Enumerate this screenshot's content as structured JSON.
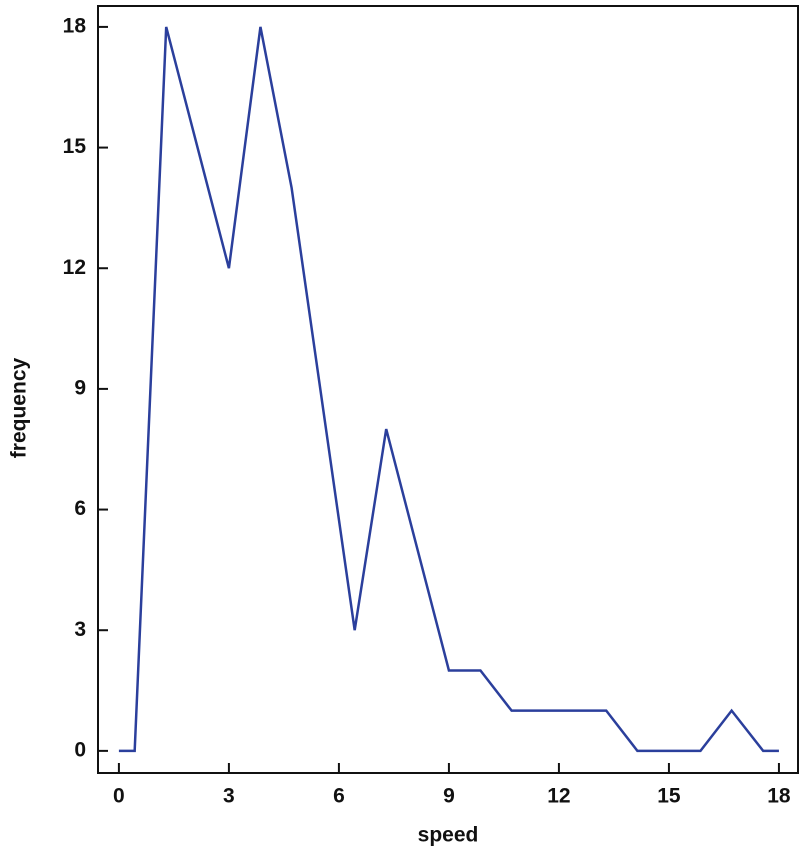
{
  "chart_data": {
    "type": "line",
    "x_label": "speed",
    "y_label": "frequency",
    "x": [
      0,
      0.43,
      1.29,
      3.0,
      3.86,
      4.71,
      6.43,
      7.29,
      9.0,
      9.86,
      10.71,
      13.29,
      14.14,
      15.86,
      16.71,
      17.57,
      18
    ],
    "series": [
      {
        "color": "#2b3f9c",
        "values": [
          0,
          0,
          18,
          12,
          18,
          14,
          3,
          8,
          2,
          2,
          1,
          1,
          0,
          0,
          1,
          0,
          0
        ]
      }
    ],
    "xlim": [
      -0.57,
      18.52
    ],
    "xticks": [
      0,
      3,
      6,
      9,
      12,
      15,
      18
    ],
    "ylim": [
      -0.55,
      18.52
    ],
    "yticks": [
      0,
      3,
      6,
      9,
      12,
      15,
      18
    ]
  }
}
